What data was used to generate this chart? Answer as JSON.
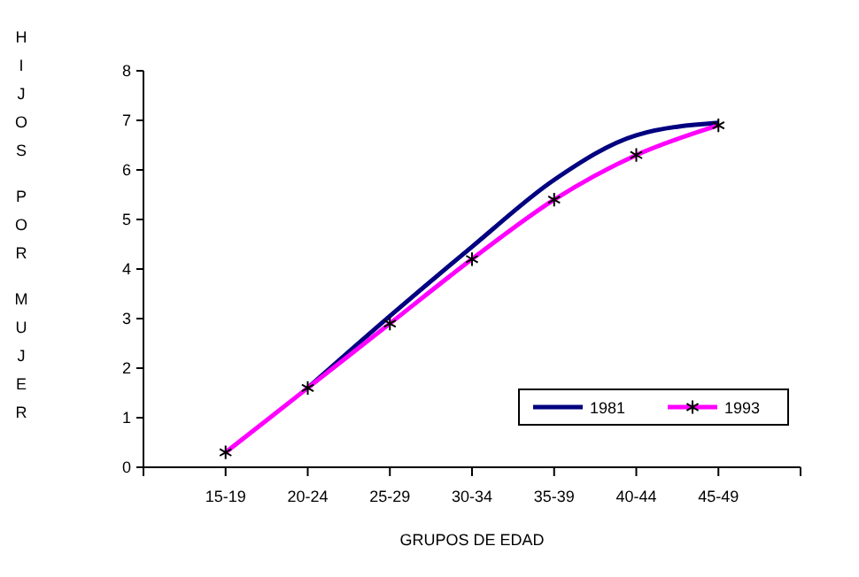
{
  "chart_data": {
    "type": "line",
    "xlabel": "GRUPOS DE EDAD",
    "ylabel": "HIJOS POR MUJER",
    "categories": [
      "15-19",
      "20-24",
      "25-29",
      "30-34",
      "35-39",
      "40-44",
      "45-49"
    ],
    "series": [
      {
        "name": "1981",
        "color": "#000080",
        "marker": "none",
        "values": [
          null,
          1.6,
          3.05,
          4.45,
          5.8,
          6.7,
          6.95
        ]
      },
      {
        "name": "1993",
        "color": "#ff00ff",
        "marker": "cross",
        "values": [
          0.3,
          1.6,
          2.9,
          4.2,
          5.4,
          6.3,
          6.9
        ]
      }
    ],
    "ylim": [
      0,
      8
    ],
    "yticks": [
      0,
      1,
      2,
      3,
      4,
      5,
      6,
      7,
      8
    ],
    "grid": false,
    "legend": "bottom right"
  }
}
